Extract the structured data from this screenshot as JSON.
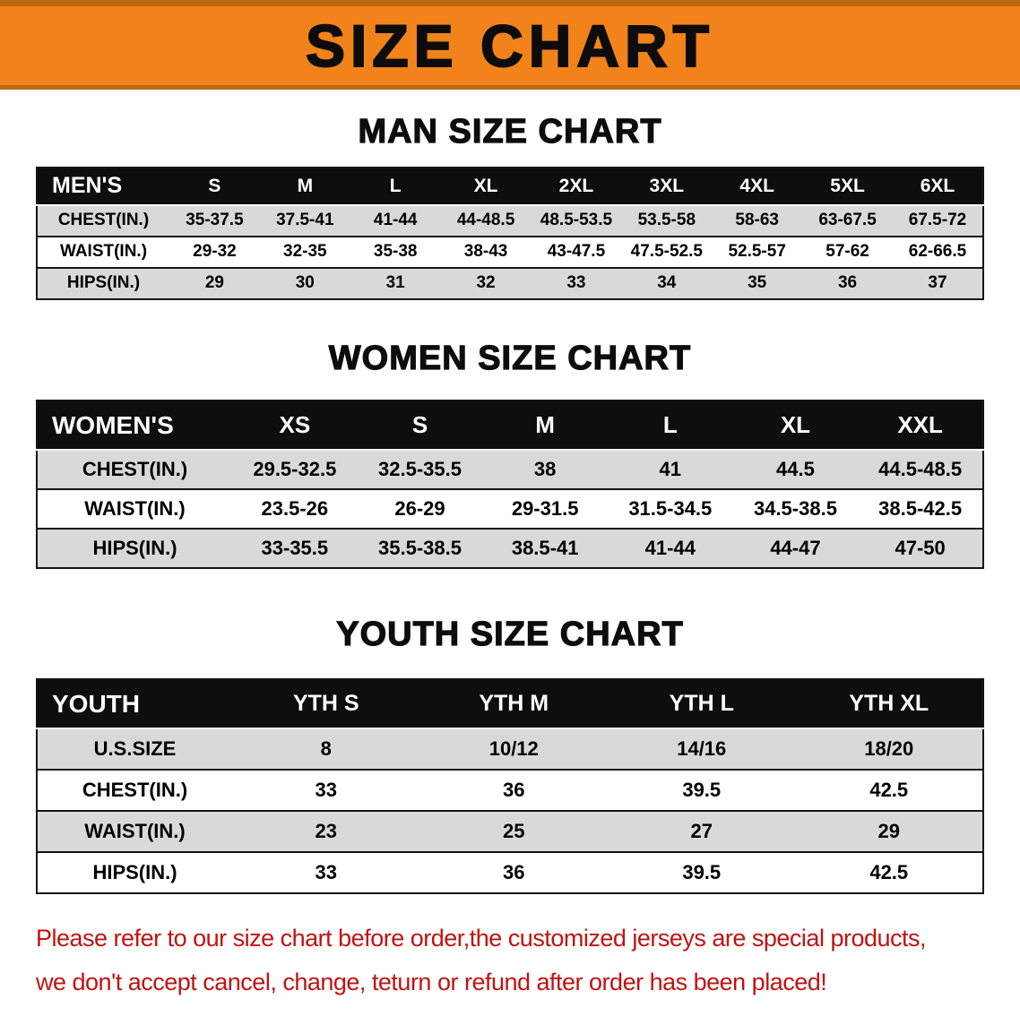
{
  "banner": {
    "title": "SIZE CHART"
  },
  "colors": {
    "banner_bg": "#f1831a",
    "banner_edge": "#bc690f",
    "table_header_bg": "#0e0e0e",
    "row_stripe_gray": "#d9d9d9",
    "disclaimer_red": "#c21212"
  },
  "men": {
    "heading": "MAN SIZE CHART",
    "table": {
      "header": [
        "MEN'S",
        "S",
        "M",
        "L",
        "XL",
        "2XL",
        "3XL",
        "4XL",
        "5XL",
        "6XL"
      ],
      "rows": [
        [
          "CHEST(IN.)",
          "35-37.5",
          "37.5-41",
          "41-44",
          "44-48.5",
          "48.5-53.5",
          "53.5-58",
          "58-63",
          "63-67.5",
          "67.5-72"
        ],
        [
          "WAIST(IN.)",
          "29-32",
          "32-35",
          "35-38",
          "38-43",
          "43-47.5",
          "47.5-52.5",
          "52.5-57",
          "57-62",
          "62-66.5"
        ],
        [
          "HIPS(IN.)",
          "29",
          "30",
          "31",
          "32",
          "33",
          "34",
          "35",
          "36",
          "37"
        ]
      ]
    }
  },
  "women": {
    "heading": "WOMEN SIZE CHART",
    "table": {
      "header": [
        "WOMEN'S",
        "XS",
        "S",
        "M",
        "L",
        "XL",
        "XXL"
      ],
      "rows": [
        [
          "CHEST(IN.)",
          "29.5-32.5",
          "32.5-35.5",
          "38",
          "41",
          "44.5",
          "44.5-48.5"
        ],
        [
          "WAIST(IN.)",
          "23.5-26",
          "26-29",
          "29-31.5",
          "31.5-34.5",
          "34.5-38.5",
          "38.5-42.5"
        ],
        [
          "HIPS(IN.)",
          "33-35.5",
          "35.5-38.5",
          "38.5-41",
          "41-44",
          "44-47",
          "47-50"
        ]
      ]
    }
  },
  "youth": {
    "heading": "YOUTH SIZE CHART",
    "table": {
      "header": [
        "YOUTH",
        "YTH S",
        "YTH M",
        "YTH L",
        "YTH XL"
      ],
      "rows": [
        [
          "U.S.SIZE",
          "8",
          "10/12",
          "14/16",
          "18/20"
        ],
        [
          "CHEST(IN.)",
          "33",
          "36",
          "39.5",
          "42.5"
        ],
        [
          "WAIST(IN.)",
          "23",
          "25",
          "27",
          "29"
        ],
        [
          "HIPS(IN.)",
          "33",
          "36",
          "39.5",
          "42.5"
        ]
      ]
    }
  },
  "disclaimer": {
    "line1": "Please refer to our size chart before order,the customized jerseys are special products,",
    "line2": "we don't accept cancel, change, teturn or refund after order has been placed!"
  }
}
